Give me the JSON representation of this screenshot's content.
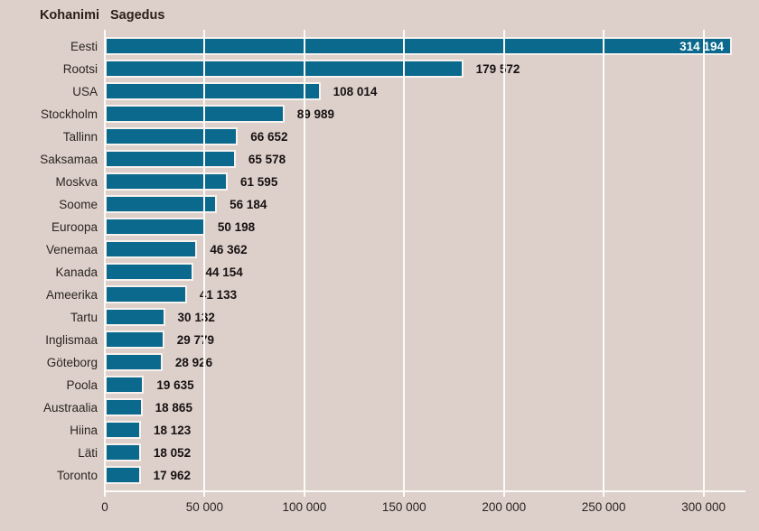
{
  "header": {
    "name_column_label": "Kohanimi",
    "frequency_column_label": "Sagedus"
  },
  "colors": {
    "background": "#ddd0ca",
    "bar_fill": "#0a698c",
    "bar_border": "#f7f2ef",
    "gridline": "#fdfbfa",
    "text": "#2b2422",
    "value_label_outside": "#161111",
    "value_label_inside": "#ffffff"
  },
  "chart_data": {
    "type": "bar",
    "orientation": "horizontal",
    "title": "",
    "xlabel": "Sagedus",
    "ylabel": "Kohanimi",
    "legend": "none",
    "grid": "vertical-white-gridlines",
    "categories": [
      "Eesti",
      "Rootsi",
      "USA",
      "Stockholm",
      "Tallinn",
      "Saksamaa",
      "Moskva",
      "Soome",
      "Euroopa",
      "Venemaa",
      "Kanada",
      "Ameerika",
      "Tartu",
      "Inglismaa",
      "Göteborg",
      "Poola",
      "Austraalia",
      "Hiina",
      "Läti",
      "Toronto"
    ],
    "values": [
      314194,
      179572,
      108014,
      89989,
      66652,
      65578,
      61595,
      56184,
      50198,
      46362,
      44154,
      41133,
      30132,
      29779,
      28926,
      19635,
      18865,
      18123,
      18052,
      17962
    ],
    "value_labels": [
      "314 194",
      "179 572",
      "108 014",
      "89 989",
      "66 652",
      "65 578",
      "61 595",
      "56 184",
      "50 198",
      "46 362",
      "44 154",
      "41 133",
      "30 132",
      "29 779",
      "28 926",
      "19 635",
      "18 865",
      "18 123",
      "18 052",
      "17 962"
    ],
    "x_ticks": [
      0,
      50000,
      100000,
      150000,
      200000,
      250000,
      300000
    ],
    "x_tick_labels": [
      "0",
      "50 000",
      "100 000",
      "150 000",
      "200 000",
      "250 000",
      "300 000"
    ],
    "xlim": [
      0,
      321000
    ]
  }
}
